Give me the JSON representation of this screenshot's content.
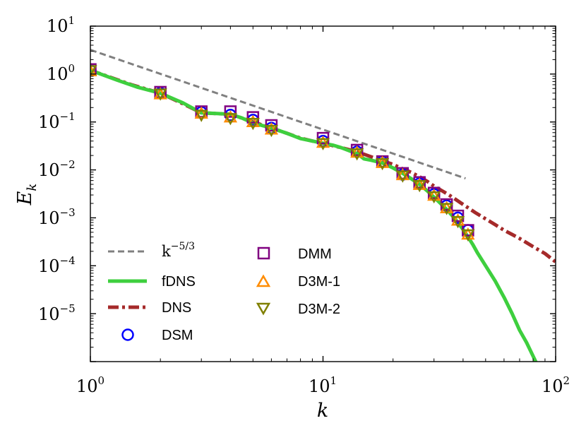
{
  "chart_data": {
    "type": "line",
    "scale": {
      "x": "log",
      "y": "log"
    },
    "xlabel": "k",
    "ylabel": "E",
    "ylabel_subscript": "k",
    "xlim": [
      1,
      100
    ],
    "ylim": [
      1e-06,
      10
    ],
    "x_ticks": [
      {
        "value": 1,
        "base": "10",
        "exp": "0"
      },
      {
        "value": 10,
        "base": "10",
        "exp": "1"
      },
      {
        "value": 100,
        "base": "10",
        "exp": "2"
      }
    ],
    "y_ticks": [
      {
        "value": 10,
        "base": "10",
        "exp": "1"
      },
      {
        "value": 1,
        "base": "10",
        "exp": "0"
      },
      {
        "value": 0.1,
        "base": "10",
        "exp": "−1"
      },
      {
        "value": 0.01,
        "base": "10",
        "exp": "−2"
      },
      {
        "value": 0.001,
        "base": "10",
        "exp": "−3"
      },
      {
        "value": 0.0001,
        "base": "10",
        "exp": "−4"
      },
      {
        "value": 1e-05,
        "base": "10",
        "exp": "−5"
      }
    ],
    "legend": {
      "placement": "lower-left",
      "ref_base": "k",
      "ref_exp": "−5/3"
    },
    "series": [
      {
        "name": "k^-5/3",
        "kind": "line",
        "style": "dashed",
        "color": "#808080",
        "x": [
          1,
          41
        ],
        "y": [
          3.2,
          0.00665
        ]
      },
      {
        "name": "fDNS",
        "kind": "line",
        "style": "solid",
        "color": "#3ecf3e",
        "x": [
          1,
          1.3,
          1.6,
          2,
          2.5,
          3,
          3.5,
          4,
          4.5,
          5,
          6,
          7,
          8,
          9,
          10,
          11,
          12,
          13,
          14,
          15,
          16,
          18,
          20,
          22,
          24,
          26,
          28,
          30,
          32,
          34,
          36,
          38,
          40,
          42,
          44,
          46,
          50,
          55,
          60,
          65,
          70,
          75,
          80,
          83
        ],
        "y": [
          1.2,
          0.75,
          0.53,
          0.4,
          0.25,
          0.155,
          0.15,
          0.145,
          0.12,
          0.095,
          0.075,
          0.058,
          0.045,
          0.04,
          0.036,
          0.033,
          0.029,
          0.025,
          0.022,
          0.017,
          0.016,
          0.014,
          0.011,
          0.0085,
          0.0065,
          0.005,
          0.0037,
          0.0027,
          0.002,
          0.0015,
          0.0011,
          0.0008,
          0.00057,
          0.0004,
          0.00028,
          0.00019,
          0.0001,
          4.8e-05,
          2.2e-05,
          1e-05,
          4.5e-06,
          2.5e-06,
          1.3e-06,
          9e-07
        ]
      },
      {
        "name": "DNS",
        "kind": "line",
        "style": "dashdot",
        "color": "#a52a2a",
        "x": [
          1,
          1.5,
          2,
          2.5,
          3,
          3.5,
          4,
          4.5,
          5,
          6,
          7,
          8,
          9,
          10,
          12,
          14,
          16,
          18,
          20,
          22,
          24,
          26,
          28,
          30,
          33,
          36,
          40,
          45,
          50,
          55,
          60,
          65,
          70,
          80,
          90,
          100
        ],
        "y": [
          1.2,
          0.6,
          0.4,
          0.24,
          0.155,
          0.15,
          0.145,
          0.12,
          0.1,
          0.075,
          0.058,
          0.046,
          0.04,
          0.036,
          0.029,
          0.024,
          0.019,
          0.0155,
          0.013,
          0.0105,
          0.0088,
          0.0072,
          0.0058,
          0.0046,
          0.0035,
          0.0027,
          0.0019,
          0.0013,
          0.00095,
          0.00072,
          0.00055,
          0.00045,
          0.00037,
          0.00025,
          0.00018,
          0.00012
        ]
      },
      {
        "name": "DSM",
        "kind": "marker",
        "marker": "circle",
        "color": "#0000ff",
        "x": [
          1,
          2,
          3,
          4,
          5,
          6,
          10,
          14,
          18,
          22,
          26,
          30,
          34,
          38,
          42
        ],
        "y": [
          1.2,
          0.4,
          0.16,
          0.14,
          0.11,
          0.075,
          0.04,
          0.024,
          0.0148,
          0.008,
          0.0052,
          0.0031,
          0.0018,
          0.001,
          0.00055
        ]
      },
      {
        "name": "DMM",
        "kind": "marker",
        "marker": "square",
        "color": "#800080",
        "x": [
          1,
          2,
          3,
          4,
          5,
          6,
          10,
          14,
          18,
          22,
          26,
          30,
          34,
          38,
          42
        ],
        "y": [
          1.25,
          0.42,
          0.165,
          0.165,
          0.125,
          0.085,
          0.046,
          0.026,
          0.015,
          0.0085,
          0.0055,
          0.0033,
          0.0019,
          0.0011,
          0.00055
        ]
      },
      {
        "name": "D3M-1",
        "kind": "marker",
        "marker": "triangle-up",
        "color": "#ff8c00",
        "x": [
          1,
          2,
          3,
          4,
          5,
          6,
          10,
          14,
          18,
          22,
          26,
          30,
          34,
          38,
          42
        ],
        "y": [
          1.15,
          0.38,
          0.15,
          0.125,
          0.1,
          0.07,
          0.037,
          0.023,
          0.014,
          0.0078,
          0.0049,
          0.0029,
          0.0016,
          0.00088,
          0.00045
        ]
      },
      {
        "name": "D3M-2",
        "kind": "marker",
        "marker": "triangle-down",
        "color": "#808000",
        "x": [
          1,
          2,
          3,
          4,
          5,
          6,
          10,
          14,
          18,
          22,
          26,
          30,
          34,
          38,
          42
        ],
        "y": [
          1.2,
          0.39,
          0.14,
          0.12,
          0.095,
          0.068,
          0.036,
          0.022,
          0.0138,
          0.0076,
          0.0048,
          0.0028,
          0.0016,
          0.00085,
          0.00045
        ]
      }
    ]
  }
}
